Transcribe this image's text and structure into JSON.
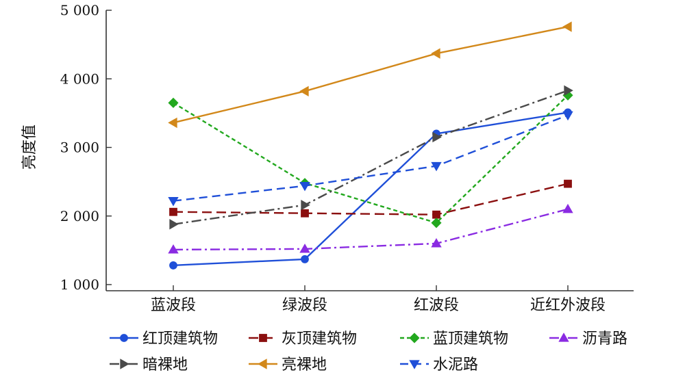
{
  "chart_data": {
    "type": "line",
    "ylabel": "亮度值",
    "ylim": [
      1000,
      5000
    ],
    "yticks": [
      1000,
      2000,
      3000,
      4000,
      5000
    ],
    "ytick_labels": [
      "1 000",
      "2 000",
      "3 000",
      "4 000",
      "5 000"
    ],
    "categories": [
      "蓝波段",
      "绿波段",
      "红波段",
      "近红外波段"
    ],
    "legend_position": "bottom",
    "grid": false,
    "series": [
      {
        "name": "红顶建筑物",
        "values": [
          1280,
          1370,
          3200,
          3510
        ],
        "color": "#1f4fd8",
        "dash": "solid",
        "marker": "circle"
      },
      {
        "name": "灰顶建筑物",
        "values": [
          2060,
          2040,
          2020,
          2470
        ],
        "color": "#8b0f0f",
        "dash": "long-dash",
        "marker": "square"
      },
      {
        "name": "蓝顶建筑物",
        "values": [
          3650,
          2480,
          1900,
          3760
        ],
        "color": "#22a81e",
        "dash": "short-dash",
        "marker": "diamond"
      },
      {
        "name": "沥青路",
        "values": [
          1510,
          1520,
          1600,
          2100
        ],
        "color": "#8a2be2",
        "dash": "dash-dot",
        "marker": "triangle-up"
      },
      {
        "name": "暗裸地",
        "values": [
          1880,
          2160,
          3150,
          3830
        ],
        "color": "#4a4a4a",
        "dash": "dash-dot",
        "marker": "triangle-right"
      },
      {
        "name": "亮裸地",
        "values": [
          3360,
          3820,
          4370,
          4760
        ],
        "color": "#d2881a",
        "dash": "solid",
        "marker": "triangle-left"
      },
      {
        "name": "水泥路",
        "values": [
          2220,
          2440,
          2730,
          3470
        ],
        "color": "#1f4fd8",
        "dash": "dashed",
        "marker": "triangle-down"
      }
    ]
  }
}
